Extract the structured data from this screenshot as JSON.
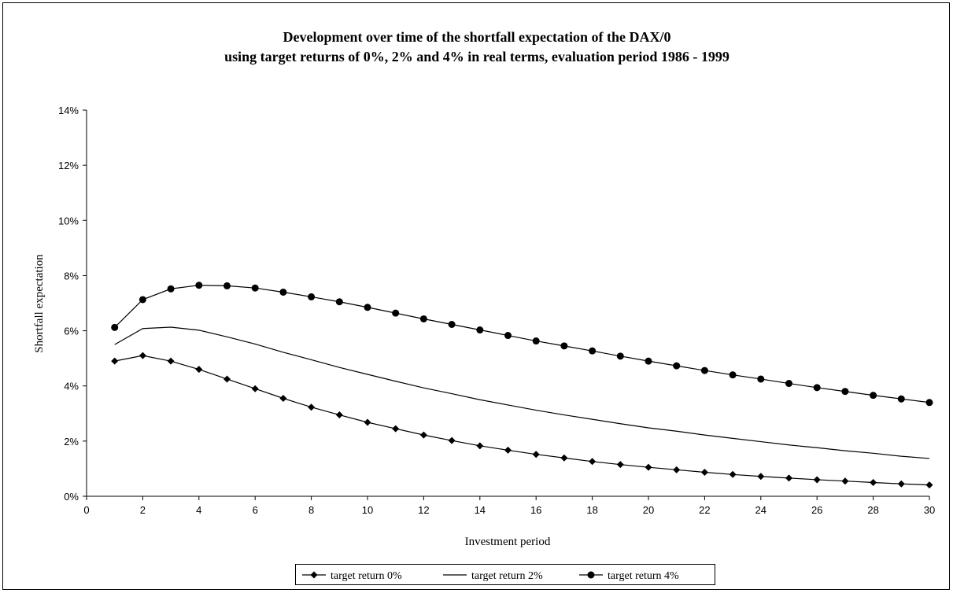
{
  "chart_data": {
    "type": "line",
    "title_line1": "Development over time of the shortfall expectation of the DAX/0",
    "title_line2": "using target returns of 0%, 2% and 4% in real terms, evaluation period 1986 - 1999",
    "xlabel": "Investment period",
    "ylabel": "Shortfall expectation",
    "xlim": [
      0,
      30
    ],
    "ylim": [
      0,
      0.14
    ],
    "xticks": [
      "0",
      "2",
      "4",
      "6",
      "8",
      "10",
      "12",
      "14",
      "16",
      "18",
      "20",
      "22",
      "24",
      "26",
      "28",
      "30"
    ],
    "yticks": [
      "0%",
      "2%",
      "4%",
      "6%",
      "8%",
      "10%",
      "12%",
      "14%"
    ],
    "grid": false,
    "legend_position": "bottom",
    "x": [
      1,
      2,
      3,
      4,
      5,
      6,
      7,
      8,
      9,
      10,
      11,
      12,
      13,
      14,
      15,
      16,
      17,
      18,
      19,
      20,
      21,
      22,
      23,
      24,
      25,
      26,
      27,
      28,
      29,
      30
    ],
    "series": [
      {
        "name": "target return 0%",
        "marker": "diamond",
        "values": [
          0.049,
          0.051,
          0.049,
          0.046,
          0.0425,
          0.039,
          0.0355,
          0.0323,
          0.0295,
          0.0268,
          0.0245,
          0.0222,
          0.0202,
          0.0183,
          0.0167,
          0.0152,
          0.0139,
          0.0126,
          0.0115,
          0.0105,
          0.0096,
          0.0087,
          0.0079,
          0.0072,
          0.0066,
          0.006,
          0.0055,
          0.005,
          0.0045,
          0.0041
        ]
      },
      {
        "name": "target return 2%",
        "marker": "none",
        "values": [
          0.055,
          0.0608,
          0.0613,
          0.0602,
          0.0578,
          0.0552,
          0.0522,
          0.0495,
          0.0467,
          0.0442,
          0.0417,
          0.0393,
          0.0372,
          0.035,
          0.0331,
          0.0312,
          0.0295,
          0.0279,
          0.0263,
          0.0248,
          0.0236,
          0.0222,
          0.021,
          0.0198,
          0.0186,
          0.0176,
          0.0165,
          0.0156,
          0.0145,
          0.0137
        ]
      },
      {
        "name": "target return 4%",
        "marker": "circle",
        "values": [
          0.0612,
          0.0713,
          0.0752,
          0.0765,
          0.0763,
          0.0755,
          0.074,
          0.0723,
          0.0705,
          0.0685,
          0.0664,
          0.0643,
          0.0623,
          0.0603,
          0.0583,
          0.0563,
          0.0545,
          0.0527,
          0.0508,
          0.049,
          0.0473,
          0.0456,
          0.044,
          0.0425,
          0.0409,
          0.0394,
          0.038,
          0.0366,
          0.0353,
          0.034
        ]
      }
    ]
  }
}
